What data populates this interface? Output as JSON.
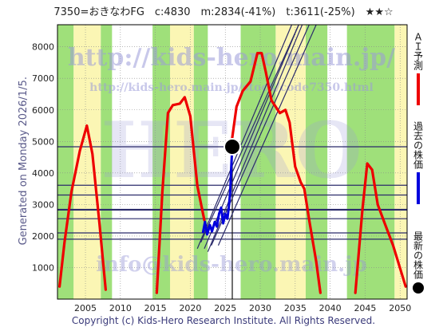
{
  "header": {
    "title": "7350=おきなわFG　c:4830　m:2834(-41%)　t:3611(-25%)　★★☆"
  },
  "watermarks": {
    "url": "http://kids-hero.main.jp/",
    "url2": "http://kids-hero.main.jp/stock/code7350.html",
    "email": "info@kids-hero.main.jp",
    "center": "HERO"
  },
  "side": {
    "generated": "Generated on Monday 2026/1/5."
  },
  "legend": {
    "ai_label": "ＡＩ予測",
    "past_label": "過去の株価",
    "latest_label": "最新の株価"
  },
  "footer": {
    "copyright": "Copyright (c) Kids-Hero Research Institute. All Rights Reserved."
  },
  "colors": {
    "ai": "#ee0000",
    "past": "#0000dd",
    "latest": "#000000",
    "green_band": "#9fe07a",
    "yellow_band": "#fbf6b4",
    "trend_lines": "#2b2b6b"
  },
  "chart_data": {
    "type": "line",
    "xlim": [
      2001,
      2051
    ],
    "ylim": [
      0,
      8700
    ],
    "x_ticks": [
      2005,
      2010,
      2015,
      2020,
      2025,
      2030,
      2035,
      2040,
      2045,
      2050
    ],
    "y_ticks": [
      1000,
      2000,
      3000,
      4000,
      5000,
      6000,
      7000,
      8000
    ],
    "grid": true,
    "series": [
      {
        "name": "ＡＩ予測",
        "color": "#ee0000",
        "segments": [
          [
            [
              2001.3,
              400
            ],
            [
              2002,
              1800
            ],
            [
              2003,
              3400
            ],
            [
              2004.2,
              4700
            ],
            [
              2005.2,
              5500
            ],
            [
              2006,
              4600
            ],
            [
              2007,
              2400
            ],
            [
              2007.9,
              300
            ]
          ],
          [
            [
              2015.2,
              200
            ],
            [
              2016,
              3400
            ],
            [
              2016.8,
              5900
            ],
            [
              2017.5,
              6150
            ],
            [
              2018.5,
              6200
            ],
            [
              2019.2,
              6400
            ],
            [
              2020,
              5800
            ],
            [
              2021,
              3600
            ],
            [
              2022,
              2500
            ]
          ],
          [
            [
              2025.8,
              4800
            ],
            [
              2026.6,
              6100
            ],
            [
              2027.5,
              6600
            ],
            [
              2028.6,
              6900
            ],
            [
              2029.6,
              7800
            ],
            [
              2030.2,
              7800
            ],
            [
              2030.8,
              7200
            ],
            [
              2031.6,
              6300
            ],
            [
              2032.8,
              5900
            ],
            [
              2033.6,
              6000
            ],
            [
              2034.2,
              5600
            ],
            [
              2035,
              4200
            ],
            [
              2035.8,
              3700
            ],
            [
              2036.3,
              3500
            ],
            [
              2037,
              2500
            ],
            [
              2038,
              1200
            ],
            [
              2038.6,
              200
            ]
          ],
          [
            [
              2043.6,
              200
            ],
            [
              2044.6,
              2800
            ],
            [
              2045.3,
              4300
            ],
            [
              2046,
              4100
            ],
            [
              2046.8,
              3000
            ],
            [
              2047.8,
              2400
            ],
            [
              2049,
              1700
            ],
            [
              2050.8,
              400
            ]
          ]
        ]
      },
      {
        "name": "過去の株価",
        "color": "#0000dd",
        "points": [
          [
            2021.8,
            2100
          ],
          [
            2022.1,
            2450
          ],
          [
            2022.4,
            2050
          ],
          [
            2022.8,
            2350
          ],
          [
            2023.1,
            2150
          ],
          [
            2023.5,
            2450
          ],
          [
            2023.8,
            2300
          ],
          [
            2024.1,
            2700
          ],
          [
            2024.4,
            2900
          ],
          [
            2024.7,
            2400
          ],
          [
            2025,
            2700
          ],
          [
            2025.3,
            2550
          ],
          [
            2025.5,
            2900
          ],
          [
            2025.7,
            3400
          ],
          [
            2025.85,
            4200
          ],
          [
            2026,
            4830
          ]
        ]
      }
    ],
    "latest": {
      "x": 2026,
      "y": 4830
    },
    "horizontal_lines": [
      1900,
      2100,
      2550,
      2834,
      3300,
      3611,
      4830
    ],
    "vertical_line_x": 2026,
    "trend_lines": [
      [
        [
          2021,
          1600
        ],
        [
          2034.5,
          8700
        ]
      ],
      [
        [
          2022,
          1600
        ],
        [
          2035.5,
          8700
        ]
      ],
      [
        [
          2023,
          1700
        ],
        [
          2037,
          8700
        ]
      ],
      [
        [
          2024,
          1700
        ],
        [
          2038,
          8700
        ]
      ],
      [
        [
          2021.5,
          1800
        ],
        [
          2035.5,
          8700
        ]
      ],
      [
        [
          2022.5,
          1500
        ],
        [
          2036,
          8700
        ]
      ]
    ],
    "green_bands": [
      [
        2001,
        2003.3
      ],
      [
        2007.2,
        2008.8
      ],
      [
        2014.6,
        2017.1
      ],
      [
        2020.5,
        2022.5
      ],
      [
        2027.2,
        2032.2
      ],
      [
        2036.5,
        2039.6
      ],
      [
        2042.4,
        2049.2
      ]
    ],
    "yellow_bands": [
      [
        2003.3,
        2007.2
      ],
      [
        2017.1,
        2020.5
      ],
      [
        2032.2,
        2036.5
      ],
      [
        2049.2,
        2051
      ]
    ]
  }
}
